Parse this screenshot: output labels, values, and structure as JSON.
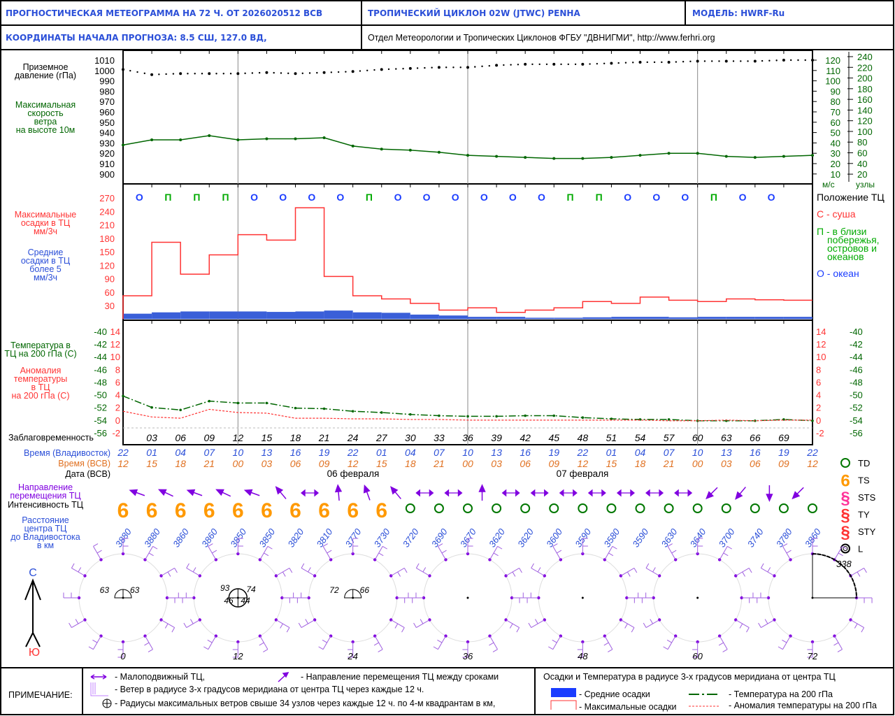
{
  "header": {
    "title": "ПРОГНОСТИЧЕСКАЯ МЕТЕОГРАММА НА 72 Ч. ОТ 2026020512 ВСВ",
    "cyclone": "ТРОПИЧЕСКИЙ ЦИКЛОН  02W  (JTWC)  PENHA",
    "model": "МОДЕЛЬ:   HWRF-Ru",
    "coords": "КООРДИНАТЫ НАЧАЛА ПРОГНОЗА:  8.5  СШ,    127.0  ВД,",
    "org": "Отдел Метеорологии и Тропических Циклонов ФГБУ \"ДВНИГМИ\",  http://www.ferhri.org"
  },
  "labels": {
    "pressure": [
      "Приземное",
      "давление (гПа)"
    ],
    "wind": [
      "Максимальная",
      "скорость",
      "ветра",
      "на высоте 10м"
    ],
    "maxprecip": [
      "Максимальные",
      "осадки в ТЦ",
      "мм/3ч"
    ],
    "meanprecip": [
      "Средние",
      "осадки в ТЦ",
      "более 5",
      "мм/3ч"
    ],
    "temp": [
      "Температура в",
      "ТЦ на 200 гПа (С)"
    ],
    "anom": [
      "Аномалия",
      "температуры",
      "в ТЦ",
      "на 200 гПа (С)"
    ],
    "lead": "Заблаговременность",
    "vlad": "Время (Владивосток)",
    "vsv": "Время (ВСВ)",
    "date": "Дата (ВСВ)",
    "direction": [
      "Направление",
      "перемещения ТЦ"
    ],
    "intensity": "Интенсивность ТЦ",
    "distance": [
      "Расстояние",
      "центра ТЦ",
      "до Владивостока",
      "в км"
    ],
    "ms": "м/с",
    "knots": "узлы",
    "north": "С",
    "south": "Ю"
  },
  "position_legend": {
    "title": "Положение ТЦ",
    "land": "С - суша",
    "coast": [
      "П - в близи",
      "побережья,",
      "островов и",
      "океанов"
    ],
    "ocean": "О - океан"
  },
  "intensity_legend": [
    "TD",
    "TS",
    "STS",
    "TY",
    "STY",
    "L"
  ],
  "dates": [
    "06 февраля",
    "07 февраля"
  ],
  "colors": {
    "blue": "#2b4fd8",
    "red": "#ff3333",
    "green": "#006600",
    "orange": "#e07020",
    "purple": "#8000e0",
    "ts": "#ff9900"
  },
  "chart_data": {
    "type": "line",
    "hours": [
      0,
      3,
      6,
      9,
      12,
      15,
      18,
      21,
      24,
      27,
      30,
      33,
      36,
      39,
      42,
      45,
      48,
      51,
      54,
      57,
      60,
      63,
      66,
      69,
      72
    ],
    "lead_labels": [
      "03",
      "06",
      "09",
      "12",
      "15",
      "18",
      "21",
      "24",
      "27",
      "30",
      "33",
      "36",
      "39",
      "42",
      "45",
      "48",
      "51",
      "54",
      "57",
      "60",
      "63",
      "66",
      "69"
    ],
    "vlad_time": [
      "22",
      "01",
      "04",
      "07",
      "10",
      "13",
      "16",
      "19",
      "22",
      "01",
      "04",
      "07",
      "10",
      "13",
      "16",
      "19",
      "22",
      "01",
      "04",
      "07",
      "10",
      "13",
      "16",
      "19",
      "22"
    ],
    "utc_time": [
      "12",
      "15",
      "18",
      "21",
      "00",
      "03",
      "06",
      "09",
      "12",
      "15",
      "18",
      "21",
      "00",
      "03",
      "06",
      "09",
      "12",
      "15",
      "18",
      "21",
      "00",
      "03",
      "06",
      "09",
      "12"
    ],
    "pressure": {
      "label": "Приземное давление (гПа)",
      "ylim": [
        900,
        1010
      ],
      "ticks": [
        1010,
        1000,
        990,
        980,
        970,
        960,
        950,
        940,
        930,
        920,
        910,
        900
      ],
      "values": [
        1001,
        996,
        997,
        997,
        997,
        998,
        997,
        998,
        999,
        1001,
        1002,
        1003,
        1003,
        1005,
        1006,
        1006,
        1006,
        1007,
        1008,
        1008,
        1009,
        1009,
        1009,
        1010,
        1010
      ]
    },
    "wind": {
      "label": "Максимальная скорость ветра (м/с)",
      "ms_ticks": [
        120,
        110,
        100,
        90,
        80,
        70,
        60,
        50,
        40,
        30,
        20,
        10
      ],
      "kt_ticks": [
        240,
        220,
        200,
        180,
        160,
        140,
        120,
        100,
        80,
        60,
        40,
        20
      ],
      "values": [
        38,
        43,
        43,
        47,
        43,
        44,
        44,
        45,
        37,
        34,
        33,
        31,
        28,
        27,
        26,
        25,
        25,
        26,
        28,
        30,
        30,
        27,
        26,
        27,
        28
      ]
    },
    "precip": {
      "ticks": [
        270,
        240,
        210,
        180,
        150,
        120,
        90,
        60,
        30
      ],
      "max": [
        52,
        171,
        100,
        143,
        188,
        176,
        248,
        95,
        52,
        45,
        35,
        20,
        25,
        15,
        20,
        25,
        39,
        35,
        49,
        42,
        39,
        45,
        43,
        42
      ],
      "mean": [
        12,
        15,
        17,
        17,
        17,
        16,
        17,
        19,
        15,
        14,
        10,
        8,
        5,
        5,
        3,
        3,
        4,
        5,
        5,
        4,
        5,
        5,
        5,
        5
      ]
    },
    "position": [
      "О",
      "П",
      "П",
      "П",
      "О",
      "О",
      "О",
      "О",
      "П",
      "О",
      "О",
      "О",
      "О",
      "О",
      "О",
      "П",
      "П",
      "О",
      "О",
      "О",
      "П",
      "О",
      "О"
    ],
    "temperature": {
      "ticks": [
        -40,
        -42,
        -44,
        -46,
        -48,
        -50,
        -52,
        -54,
        -56
      ],
      "values": [
        -50.2,
        -52,
        -52.4,
        -51,
        -51.3,
        -51.3,
        -52.1,
        -52.2,
        -52.6,
        -52.8,
        -53.1,
        -53.3,
        -53.4,
        -53.4,
        -53.3,
        -53.3,
        -53.6,
        -53.8,
        -53.9,
        -53.9,
        -54.1,
        -54.1,
        -54.1,
        -53.9,
        -54.1
      ]
    },
    "anomaly": {
      "ticks": [
        14,
        12,
        10,
        8,
        6,
        4,
        2,
        0,
        -2
      ],
      "values": [
        1.4,
        0.5,
        0.3,
        1.7,
        1.2,
        1.1,
        0.3,
        0.3,
        0.2,
        0.2,
        0.1,
        0.1,
        0,
        0,
        0,
        0,
        0,
        0,
        0,
        -0.1,
        -0.1,
        0,
        -0.1,
        0,
        0
      ]
    },
    "direction": [
      290,
      295,
      290,
      295,
      290,
      320,
      "stat",
      355,
      340,
      320,
      "stat",
      "stat",
      0,
      "stat",
      "stat",
      "stat",
      "stat",
      "stat",
      "stat",
      "stat",
      225,
      220,
      180,
      225
    ],
    "intensity": [
      "TS",
      "TS",
      "TS",
      "TS",
      "TS",
      "TS",
      "TS",
      "TS",
      "TS",
      "TS",
      "TD",
      "TD",
      "TD",
      "TD",
      "TD",
      "TD",
      "TD",
      "TD",
      "TD",
      "TD",
      "TD",
      "TD",
      "TD",
      "TD",
      "TD"
    ],
    "distance_km": [
      "3880",
      "3880",
      "3860",
      "3860",
      "3850",
      "3850",
      "3820",
      "3810",
      "3770",
      "3730",
      "3720",
      "3690",
      "3670",
      "3620",
      "3620",
      "3600",
      "3590",
      "3580",
      "3590",
      "3630",
      "3640",
      "3700",
      "3740",
      "3780",
      "3860"
    ],
    "roses": [
      {
        "hour": "0",
        "radii": [
          "63",
          "63"
        ]
      },
      {
        "hour": "12",
        "radii": [
          "93",
          "74",
          "46",
          "44"
        ]
      },
      {
        "hour": "24",
        "radii": [
          "72",
          "66"
        ]
      },
      {
        "hour": "36",
        "radii": []
      },
      {
        "hour": "48",
        "radii": []
      },
      {
        "hour": "60",
        "radii": []
      },
      {
        "hour": "72",
        "radii": [
          "338"
        ]
      }
    ]
  },
  "notes": {
    "title": "ПРИМЕЧАНИЕ:",
    "stationary": "- Малоподвижный ТЦ,",
    "direction": "- Направление перемещения ТЦ между сроками",
    "wind": "- Ветер в радиусе 3-х градусов меридиана от центра ТЦ через каждые 12 ч.",
    "radii": "- Радиусы максимальных ветров свыше 34 узлов через каждые 12 ч. по 4-м квадрантам в км,",
    "precip_title": "Осадки и Температура в радиусе 3-х градусов меридиана от центра ТЦ",
    "mean": "- Средние осадки",
    "max": "- Максимальные осадки",
    "temp": "- Температура на 200 гПа",
    "anom": "- Аномалия температуры на 200 гПа"
  }
}
